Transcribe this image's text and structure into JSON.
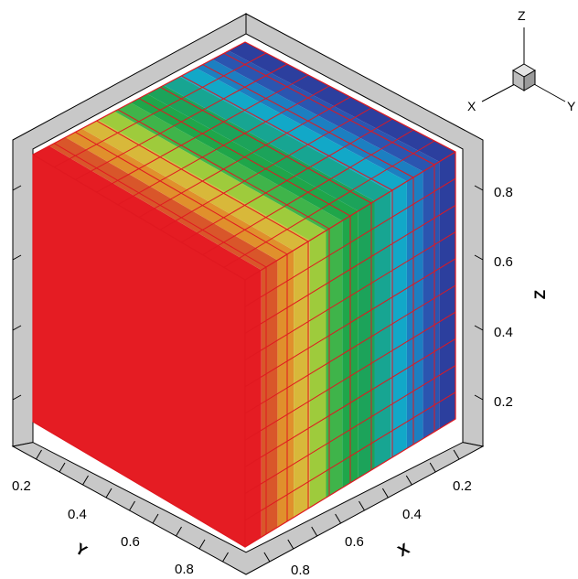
{
  "plot": {
    "type": "3d-cube-contour",
    "colors": {
      "wall_fill": "#c8c8c8",
      "wall_stroke": "#000000",
      "grid_line": "#e01820",
      "red": "#e51c23"
    },
    "color_map": [
      "#e51c23",
      "#d9562a",
      "#e0902c",
      "#d8b83a",
      "#9ecb3c",
      "#3fb44a",
      "#1fa64a",
      "#1ca35a",
      "#17a592",
      "#12a8c8",
      "#1c7fc1",
      "#2b55b0",
      "#2c3f9e"
    ]
  },
  "axes": {
    "z": {
      "title": "Z",
      "ticks": [
        "0.2",
        "0.4",
        "0.6",
        "0.8"
      ]
    },
    "x": {
      "title": "X",
      "ticks": [
        "0.2",
        "0.4",
        "0.6",
        "0.8"
      ]
    },
    "y": {
      "title": "Y",
      "ticks": [
        "0.2",
        "0.4",
        "0.6",
        "0.8"
      ]
    }
  },
  "triad": {
    "z_label": "Z",
    "x_label": "X",
    "y_label": "Y"
  }
}
